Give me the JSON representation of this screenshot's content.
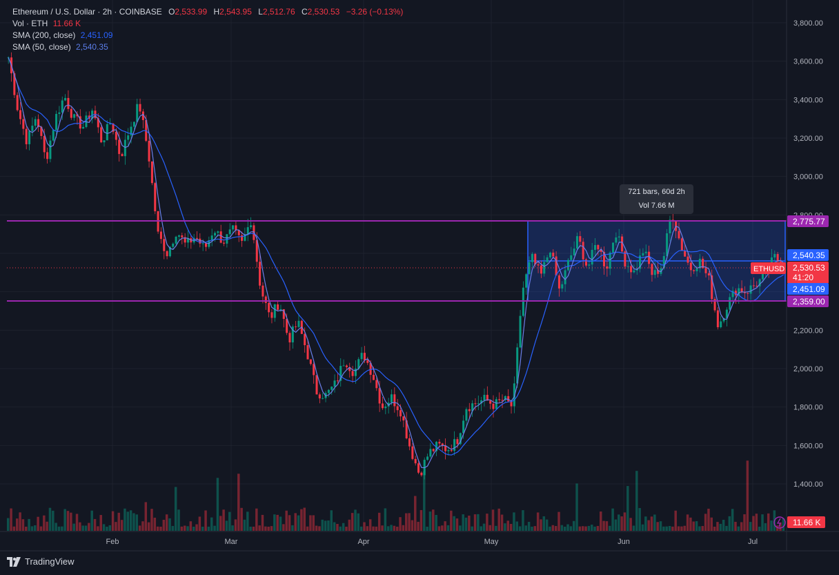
{
  "header": {
    "symbol_title": "Ethereum / U.S. Dollar · 2h · COINBASE",
    "open_label": "O",
    "open": "2,533.99",
    "high_label": "H",
    "high": "2,543.95",
    "low_label": "L",
    "low": "2,512.76",
    "close_label": "C",
    "close": "2,530.53",
    "change": "−3.26 (−0.13%)",
    "vol_label": "Vol · ETH",
    "vol_value": "11.66 K",
    "sma200_label": "SMA (200, close)",
    "sma200_value": "2,451.09",
    "sma50_label": "SMA (50, close)",
    "sma50_value": "2,540.35"
  },
  "price_axis": {
    "ticks": [
      "3,800.00",
      "3,600.00",
      "3,400.00",
      "3,200.00",
      "3,000.00",
      "2,800.00",
      "2,200.00",
      "2,000.00",
      "1,800.00",
      "1,600.00",
      "1,400.00"
    ]
  },
  "time_axis": {
    "labels": [
      "Feb",
      "Mar",
      "Apr",
      "May",
      "Jun",
      "Jul"
    ]
  },
  "price_badges": {
    "upper_line": "2,775.77",
    "sma50": "2,540.35",
    "symbol": "ETHUSD",
    "last": "2,530.53",
    "countdown": "41:20",
    "sma200": "2,451.09",
    "lower_line": "2,359.00",
    "volume": "11.66 K"
  },
  "range_tooltip": {
    "line1": "721 bars, 60d 2h",
    "line2": "Vol 7.66 M"
  },
  "footer": {
    "brand": "TradingView"
  },
  "colors": {
    "background": "#131722",
    "up": "#089981",
    "down": "#f23645",
    "sma200": "#2962ff",
    "sma50": "#5b6ee1",
    "horizontal_lines": "#9c27b0",
    "range_box": "#2962ff"
  },
  "chart_data": {
    "type": "candlestick",
    "y_range": [
      1300,
      3850
    ],
    "horizontal_levels": [
      2775.77,
      2359.0
    ],
    "last_price": 2530.53,
    "price_path": [
      {
        "x": "Jan start",
        "y": 3620
      },
      {
        "x": "Jan",
        "y": 3350
      },
      {
        "x": "Jan",
        "y": 3180
      },
      {
        "x": "Jan",
        "y": 3320
      },
      {
        "x": "Jan",
        "y": 3080
      },
      {
        "x": "Jan",
        "y": 3300
      },
      {
        "x": "Jan",
        "y": 3420
      },
      {
        "x": "Jan",
        "y": 3300
      },
      {
        "x": "Jan",
        "y": 3260
      },
      {
        "x": "Jan",
        "y": 3350
      },
      {
        "x": "Jan",
        "y": 3180
      },
      {
        "x": "Jan",
        "y": 3290
      },
      {
        "x": "Jan",
        "y": 3100
      },
      {
        "x": "Feb",
        "y": 3250
      },
      {
        "x": "Feb",
        "y": 3380
      },
      {
        "x": "Feb",
        "y": 3120
      },
      {
        "x": "Feb",
        "y": 2700
      },
      {
        "x": "Feb",
        "y": 2600
      },
      {
        "x": "Feb",
        "y": 2720
      },
      {
        "x": "Feb",
        "y": 2640
      },
      {
        "x": "Feb",
        "y": 2690
      },
      {
        "x": "Feb",
        "y": 2620
      },
      {
        "x": "Feb",
        "y": 2730
      },
      {
        "x": "Feb",
        "y": 2660
      },
      {
        "x": "Feb",
        "y": 2720
      },
      {
        "x": "Feb",
        "y": 2650
      },
      {
        "x": "Feb",
        "y": 2780
      },
      {
        "x": "Mar",
        "y": 2420
      },
      {
        "x": "Mar",
        "y": 2260
      },
      {
        "x": "Mar",
        "y": 2350
      },
      {
        "x": "Mar",
        "y": 2150
      },
      {
        "x": "Mar",
        "y": 2240
      },
      {
        "x": "Mar",
        "y": 2080
      },
      {
        "x": "Mar",
        "y": 1880
      },
      {
        "x": "Mar",
        "y": 1860
      },
      {
        "x": "Mar",
        "y": 1920
      },
      {
        "x": "Mar",
        "y": 2050
      },
      {
        "x": "Mar",
        "y": 1980
      },
      {
        "x": "Mar",
        "y": 2080
      },
      {
        "x": "Apr",
        "y": 1970
      },
      {
        "x": "Apr",
        "y": 1800
      },
      {
        "x": "Apr",
        "y": 1850
      },
      {
        "x": "Apr",
        "y": 1780
      },
      {
        "x": "Apr",
        "y": 1590
      },
      {
        "x": "Apr",
        "y": 1450
      },
      {
        "x": "Apr",
        "y": 1560
      },
      {
        "x": "Apr",
        "y": 1600
      },
      {
        "x": "Apr",
        "y": 1580
      },
      {
        "x": "Apr",
        "y": 1620
      },
      {
        "x": "Apr",
        "y": 1800
      },
      {
        "x": "Apr",
        "y": 1820
      },
      {
        "x": "Apr",
        "y": 1840
      },
      {
        "x": "Apr",
        "y": 1810
      },
      {
        "x": "May",
        "y": 1840
      },
      {
        "x": "May",
        "y": 1800
      },
      {
        "x": "May",
        "y": 2400
      },
      {
        "x": "May",
        "y": 2580
      },
      {
        "x": "May",
        "y": 2480
      },
      {
        "x": "May",
        "y": 2630
      },
      {
        "x": "May",
        "y": 2400
      },
      {
        "x": "May",
        "y": 2560
      },
      {
        "x": "May",
        "y": 2680
      },
      {
        "x": "May",
        "y": 2520
      },
      {
        "x": "May",
        "y": 2660
      },
      {
        "x": "May",
        "y": 2520
      },
      {
        "x": "May",
        "y": 2720
      },
      {
        "x": "May",
        "y": 2560
      },
      {
        "x": "Jun",
        "y": 2500
      },
      {
        "x": "Jun",
        "y": 2620
      },
      {
        "x": "Jun",
        "y": 2480
      },
      {
        "x": "Jun",
        "y": 2540
      },
      {
        "x": "Jun",
        "y": 2820
      },
      {
        "x": "Jun",
        "y": 2640
      },
      {
        "x": "Jun",
        "y": 2520
      },
      {
        "x": "Jun",
        "y": 2560
      },
      {
        "x": "Jun",
        "y": 2460
      },
      {
        "x": "Jun",
        "y": 2220
      },
      {
        "x": "Jun",
        "y": 2340
      },
      {
        "x": "Jun",
        "y": 2420
      },
      {
        "x": "Jun",
        "y": 2400
      },
      {
        "x": "Jun",
        "y": 2440
      },
      {
        "x": "Jul",
        "y": 2480
      },
      {
        "x": "Jul",
        "y": 2580
      },
      {
        "x": "Jul",
        "y": 2530
      }
    ]
  }
}
